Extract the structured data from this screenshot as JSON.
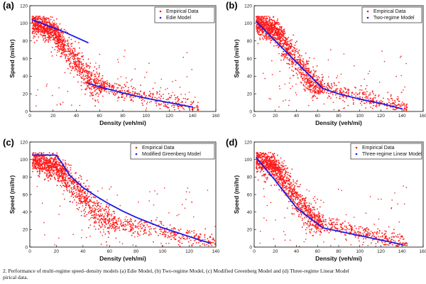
{
  "colors": {
    "empirical": "#ff1a1a",
    "model": "#1a1ae6"
  },
  "chart_data": [
    {
      "panel_label": "(a)",
      "type": "scatter",
      "xlabel": "Density (veh/mi)",
      "ylabel": "Speed (mi/hr)",
      "xlim": [
        0,
        160
      ],
      "ylim": [
        0,
        120
      ],
      "xticks": [
        0,
        20,
        40,
        60,
        80,
        100,
        120,
        140,
        160
      ],
      "yticks": [
        0,
        20,
        40,
        60,
        80,
        100,
        120
      ],
      "legend_position": "top-right",
      "series": [
        {
          "name": "Empirical Data",
          "kind": "scatter"
        },
        {
          "name": "Edie Model",
          "kind": "line",
          "segments": [
            [
              [
                2,
                104
              ],
              [
                10,
                100
              ],
              [
                20,
                95
              ],
              [
                30,
                90
              ],
              [
                40,
                84
              ],
              [
                50,
                78
              ]
            ],
            [
              [
                50,
                32
              ],
              [
                60,
                28
              ],
              [
                70,
                24.5
              ],
              [
                80,
                21
              ],
              [
                90,
                18
              ],
              [
                100,
                15
              ],
              [
                110,
                12.5
              ],
              [
                120,
                10
              ],
              [
                130,
                7.5
              ],
              [
                140,
                5
              ]
            ]
          ]
        }
      ]
    },
    {
      "panel_label": "(b)",
      "type": "scatter",
      "xlabel": "Density (veh/mi)",
      "ylabel": "Speed (mi/hr)",
      "xlim": [
        0,
        160
      ],
      "ylim": [
        0,
        120
      ],
      "xticks": [
        0,
        20,
        40,
        60,
        80,
        100,
        120,
        140,
        160
      ],
      "yticks": [
        0,
        20,
        40,
        60,
        80,
        100,
        120
      ],
      "legend_position": "top-right",
      "series": [
        {
          "name": "Empirical Data",
          "kind": "scatter"
        },
        {
          "name": "Two-regime Model",
          "kind": "line",
          "segments": [
            [
              [
                2,
                102
              ],
              [
                20,
                80
              ],
              [
                40,
                56
              ],
              [
                65,
                26
              ]
            ],
            [
              [
                65,
                26
              ],
              [
                80,
                20
              ],
              [
                100,
                14
              ],
              [
                120,
                9
              ],
              [
                140,
                3
              ]
            ]
          ]
        }
      ]
    },
    {
      "panel_label": "(c)",
      "type": "scatter",
      "xlabel": "Density (veh/mi)",
      "ylabel": "Speed (mi/hr)",
      "xlim": [
        0,
        140
      ],
      "ylim": [
        0,
        120
      ],
      "xticks": [
        0,
        20,
        40,
        60,
        80,
        100,
        120,
        140
      ],
      "yticks": [
        0,
        20,
        40,
        60,
        80,
        100,
        120
      ],
      "legend_position": "top-right",
      "series": [
        {
          "name": "Empirical Data",
          "kind": "scatter"
        },
        {
          "name": "Modified Greenberg Model",
          "kind": "line",
          "segments": [
            [
              [
                2,
                105
              ],
              [
                20,
                105
              ],
              [
                25,
                94
              ],
              [
                30,
                82
              ],
              [
                40,
                68
              ],
              [
                50,
                58
              ],
              [
                60,
                49
              ],
              [
                70,
                41
              ],
              [
                80,
                34
              ],
              [
                90,
                28
              ],
              [
                100,
                22
              ],
              [
                110,
                17
              ],
              [
                120,
                12
              ],
              [
                130,
                7
              ],
              [
                135,
                5
              ]
            ]
          ]
        }
      ]
    },
    {
      "panel_label": "(d)",
      "type": "scatter",
      "xlabel": "Density (veh/mi)",
      "ylabel": "Speed (mi/hr)",
      "xlim": [
        0,
        160
      ],
      "ylim": [
        0,
        120
      ],
      "xticks": [
        0,
        20,
        40,
        60,
        80,
        100,
        120,
        140,
        160
      ],
      "yticks": [
        0,
        20,
        40,
        60,
        80,
        100,
        120
      ],
      "legend_position": "top-right",
      "series": [
        {
          "name": "Empirical Data",
          "kind": "scatter"
        },
        {
          "name": "Three-regime Linear Model",
          "kind": "line",
          "segments": [
            [
              [
                2,
                102
              ],
              [
                20,
                76
              ],
              [
                40,
                45
              ]
            ],
            [
              [
                40,
                45
              ],
              [
                65,
                22
              ]
            ],
            [
              [
                65,
                22
              ],
              [
                100,
                13
              ],
              [
                140,
                3
              ]
            ]
          ]
        }
      ]
    }
  ],
  "caption": {
    "line1": "2. Performance of multi-regime speed–density models (a) Edie Model, (b) Two-regime Model, (c) Modified Greenberg Model and (d) Three-regime Linear Model",
    "line2": "pirical data."
  }
}
